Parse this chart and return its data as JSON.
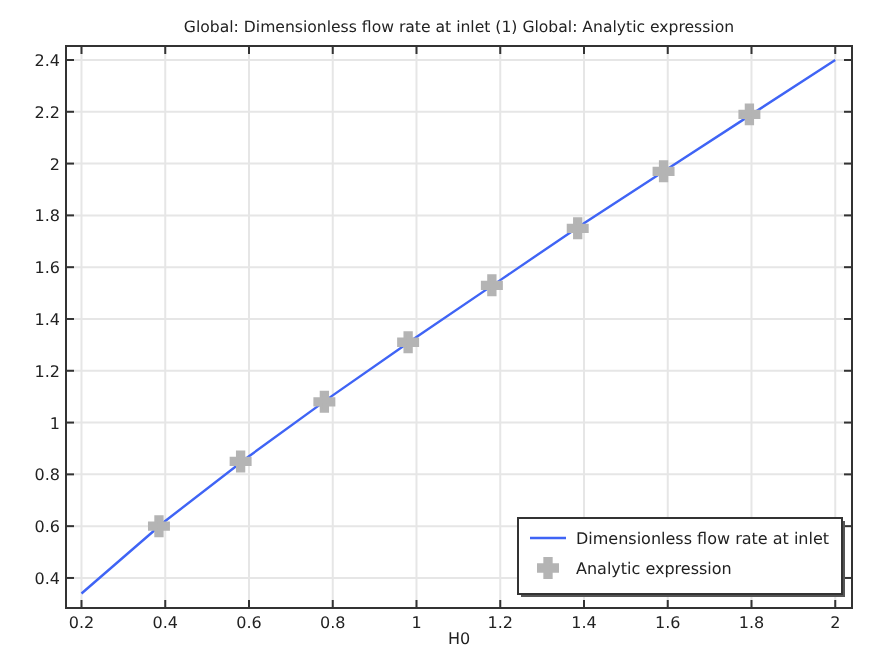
{
  "chart_data": {
    "type": "line",
    "title": "Global: Dimensionless flow rate at inlet (1)  Global: Analytic expression",
    "xlabel": "H0",
    "xlim": [
      0.163,
      2.04
    ],
    "ylim": [
      0.284,
      2.454
    ],
    "xticks": [
      0.2,
      0.4,
      0.6,
      0.8,
      1,
      1.2,
      1.4,
      1.6,
      1.8,
      2
    ],
    "yticks": [
      0.4,
      0.6,
      0.8,
      1,
      1.2,
      1.4,
      1.6,
      1.8,
      2,
      2.2,
      2.4
    ],
    "grid": true,
    "legend": "bottom right",
    "series": [
      {
        "name": "Dimensionless flow rate at inlet",
        "color": "#3f64f5",
        "marker": "none",
        "line_style": "solid",
        "x": [
          0.2,
          0.4,
          0.6,
          0.8,
          1,
          1.2,
          1.4,
          1.6,
          1.8,
          2
        ],
        "values": [
          0.34,
          0.62,
          0.87,
          1.105,
          1.33,
          1.55,
          1.77,
          1.98,
          2.19,
          2.4
        ]
      },
      {
        "name": "Analytic expression",
        "type": "scatter",
        "color": "#b4b4b4",
        "marker": "cross",
        "x": [
          0.385,
          0.58,
          0.78,
          0.98,
          1.18,
          1.385,
          1.59,
          1.795
        ],
        "values": [
          0.6,
          0.85,
          1.08,
          1.31,
          1.53,
          1.75,
          1.97,
          2.19
        ]
      }
    ]
  }
}
